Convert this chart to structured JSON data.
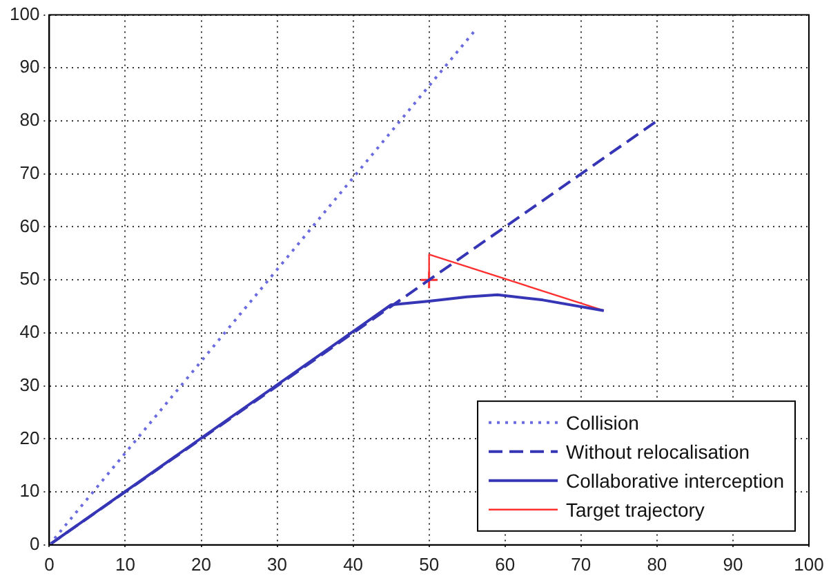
{
  "chart_data": {
    "type": "line",
    "xlim": [
      0,
      100
    ],
    "ylim": [
      0,
      100
    ],
    "xticks": [
      0,
      10,
      20,
      30,
      40,
      50,
      60,
      70,
      80,
      90,
      100
    ],
    "yticks": [
      0,
      10,
      20,
      30,
      40,
      50,
      60,
      70,
      80,
      90,
      100
    ],
    "grid": true,
    "legend": "bottom right",
    "marker": "none",
    "series": [
      {
        "name": "Collision",
        "color": "#6b6be0",
        "line_style": "dotted",
        "x": [
          0,
          56
        ],
        "values": [
          0,
          97
        ]
      },
      {
        "name": "Without relocalisation",
        "color": "#3535b5",
        "line_style": "dashed",
        "x": [
          0,
          80
        ],
        "values": [
          0,
          80
        ]
      },
      {
        "name": "Collaborative interception",
        "color": "#3535b5",
        "line_style": "solid",
        "x": [
          0,
          45,
          50,
          55,
          59,
          65,
          73
        ],
        "values": [
          0,
          45.3,
          46,
          46.8,
          47.2,
          46.2,
          44.2
        ]
      },
      {
        "name": "Target trajectory",
        "color": "#ff3030",
        "line_style": "solid",
        "x": [
          73,
          50,
          50
        ],
        "values": [
          44.2,
          54.8,
          49.8
        ]
      },
      {
        "type": "scatter",
        "color": "#ff3030",
        "marker": "cross",
        "x": [
          50
        ],
        "values": [
          50
        ]
      }
    ]
  }
}
